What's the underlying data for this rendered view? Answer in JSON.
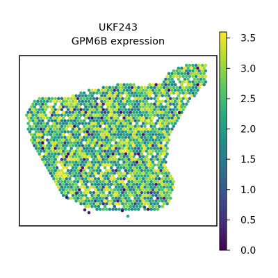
{
  "chart_data": {
    "type": "scatter",
    "title_line1": "UKF243",
    "title_line2": "GPM6B expression",
    "colorbar": {
      "colormap": "viridis",
      "range": [
        0.0,
        3.6
      ],
      "ticks": [
        0.0,
        0.5,
        1.0,
        1.5,
        2.0,
        2.5,
        3.0,
        3.5
      ],
      "tick_labels": [
        "0.0",
        "0.5",
        "1.0",
        "1.5",
        "2.0",
        "2.5",
        "3.0",
        "3.5"
      ]
    },
    "xlabel": "",
    "ylabel": "",
    "grid": false,
    "spot_value_range": [
      0.0,
      3.6
    ],
    "typical_value": 2.4,
    "colors": {
      "low": "#440154",
      "mid": "#21918c",
      "high": "#fde725"
    }
  }
}
